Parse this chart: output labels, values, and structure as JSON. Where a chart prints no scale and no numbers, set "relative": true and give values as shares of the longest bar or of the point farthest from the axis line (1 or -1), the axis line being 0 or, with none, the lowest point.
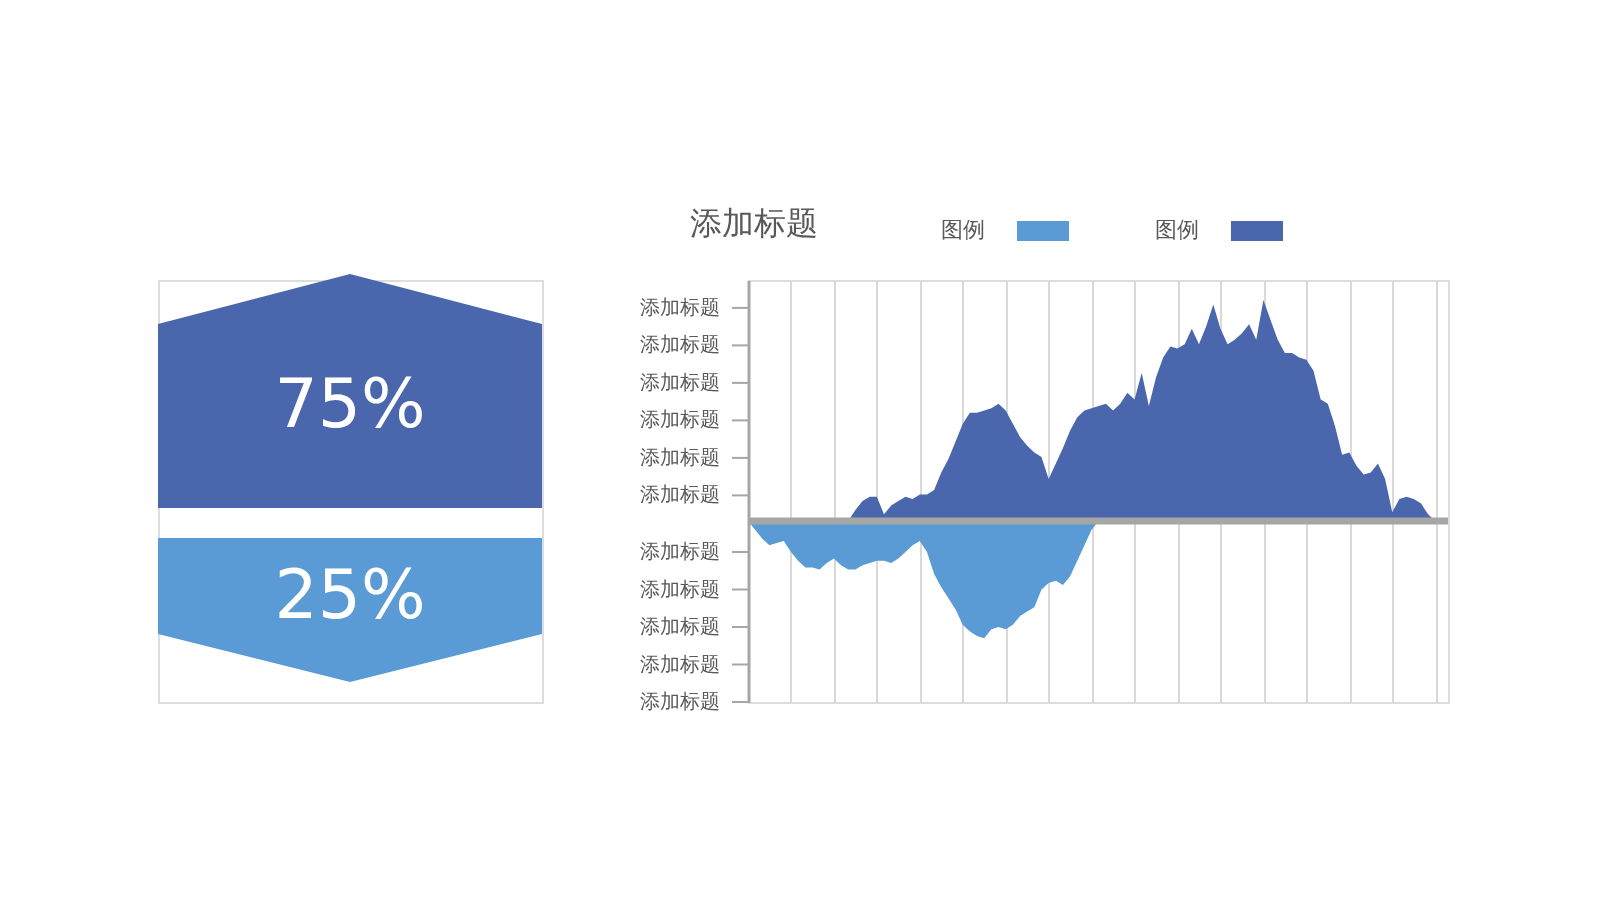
{
  "chart_data": [
    {
      "type": "other",
      "annotations": [
        "75%",
        "25%"
      ],
      "colors": [
        "#4a66ac",
        "#5b9bd5"
      ]
    },
    {
      "type": "area",
      "title": "添加标题",
      "relative": true,
      "categories": [
        null,
        null,
        null,
        null,
        null,
        null,
        null,
        null,
        null,
        null,
        null,
        null,
        null,
        null,
        null,
        null,
        null,
        null,
        null,
        null,
        null,
        null,
        null,
        null,
        null,
        null,
        null,
        null,
        null,
        null,
        null,
        null,
        null,
        null,
        null,
        null,
        null,
        null,
        null,
        null,
        null,
        null,
        null,
        null,
        null,
        null,
        null,
        null,
        null,
        null,
        null,
        null,
        null,
        null,
        null,
        null,
        null,
        null,
        null,
        null,
        null,
        null,
        null,
        null,
        null,
        null,
        null,
        null,
        null,
        null,
        null,
        null,
        null,
        null,
        null,
        null,
        null,
        null,
        null,
        null,
        null,
        null,
        null,
        null,
        null,
        null,
        null,
        null,
        null,
        null,
        null,
        null,
        null,
        null,
        null,
        null,
        null
      ],
      "series": [
        {
          "name": "图例",
          "color": "#5b9bd5",
          "values": [
            0,
            -0.04,
            -0.08,
            -0.11,
            -0.1,
            -0.09,
            -0.14,
            -0.18,
            -0.21,
            -0.21,
            -0.22,
            -0.19,
            -0.17,
            -0.2,
            -0.22,
            -0.22,
            -0.2,
            -0.19,
            -0.18,
            -0.18,
            -0.19,
            -0.17,
            -0.14,
            -0.11,
            -0.09,
            -0.14,
            -0.24,
            -0.3,
            -0.35,
            -0.4,
            -0.47,
            -0.5,
            -0.52,
            -0.53,
            -0.49,
            -0.48,
            -0.49,
            -0.47,
            -0.43,
            -0.41,
            -0.39,
            -0.31,
            -0.28,
            -0.27,
            -0.29,
            -0.25,
            -0.18,
            -0.11,
            -0.04,
            0,
            null,
            null,
            null,
            null,
            null,
            null,
            null,
            null,
            null,
            null,
            null,
            null,
            null,
            null,
            null,
            null,
            null,
            null,
            null,
            null,
            null,
            null,
            null,
            null,
            null,
            null,
            null,
            null,
            null,
            null,
            null,
            null,
            null,
            null,
            null,
            null,
            null,
            null,
            null,
            null,
            null,
            null,
            null,
            null,
            null,
            null,
            null
          ]
        },
        {
          "name": "图例",
          "color": "#4a66ac",
          "values": [
            null,
            null,
            null,
            null,
            null,
            null,
            null,
            null,
            null,
            null,
            null,
            null,
            null,
            null,
            0,
            0.05,
            0.09,
            0.11,
            0.11,
            0.03,
            0.07,
            0.09,
            0.11,
            0.1,
            0.12,
            0.12,
            0.14,
            0.22,
            0.28,
            0.36,
            0.44,
            0.49,
            0.49,
            0.5,
            0.51,
            0.53,
            0.5,
            0.44,
            0.38,
            0.34,
            0.31,
            0.29,
            0.19,
            0.26,
            0.33,
            0.41,
            0.47,
            0.5,
            0.51,
            0.52,
            0.53,
            0.5,
            0.53,
            0.58,
            0.55,
            0.67,
            0.52,
            0.65,
            0.74,
            0.79,
            0.78,
            0.8,
            0.87,
            0.8,
            0.88,
            0.98,
            0.87,
            0.8,
            0.82,
            0.85,
            0.89,
            0.82,
            1.0,
            0.91,
            0.82,
            0.76,
            0.76,
            0.74,
            0.73,
            0.68,
            0.55,
            0.53,
            0.43,
            0.3,
            0.31,
            0.25,
            0.21,
            0.22,
            0.26,
            0.19,
            0.04,
            0.1,
            0.11,
            0.1,
            0.08,
            0.03,
            0
          ]
        }
      ],
      "annotations": [
        "添加标题",
        "添加标题",
        "添加标题",
        "添加标题",
        "添加标题",
        "添加标题",
        "添加标题",
        "添加标题",
        "添加标题",
        "添加标题",
        "添加标题"
      ],
      "grid": "x",
      "legend": "top"
    }
  ]
}
